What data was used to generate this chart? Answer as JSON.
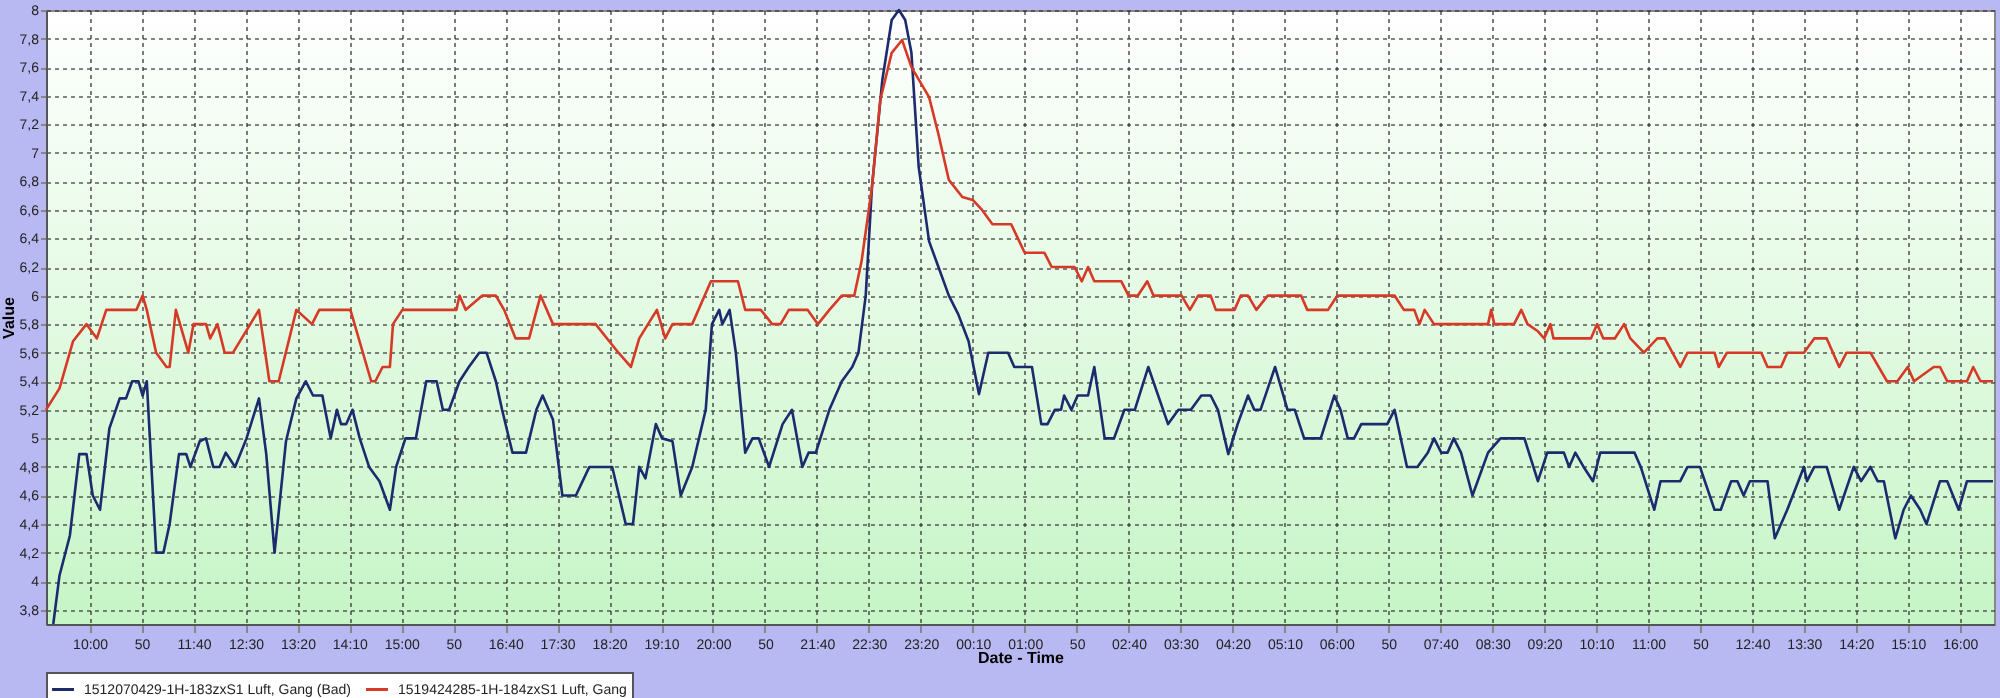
{
  "chart_data": {
    "type": "line",
    "xlabel": "Date - Time",
    "ylabel": "Value",
    "xlim": [
      "--01-01T09:18",
      "--01-02T16:33"
    ],
    "ylim": [
      3.7,
      8
    ],
    "xticks": [
      {
        "value": "--01-01T10:00",
        "label": "10:00"
      },
      {
        "value": "--01-01T10:50",
        "label": "50"
      },
      {
        "value": "--01-01T11:40",
        "label": "11:40"
      },
      {
        "value": "--01-01T12:30",
        "label": "12:30"
      },
      {
        "value": "--01-01T13:20",
        "label": "13:20"
      },
      {
        "value": "--01-01T14:10",
        "label": "14:10"
      },
      {
        "value": "--01-01T15:00",
        "label": "15:00"
      },
      {
        "value": "--01-01T15:50",
        "label": "50"
      },
      {
        "value": "--01-01T16:40",
        "label": "16:40"
      },
      {
        "value": "--01-01T17:30",
        "label": "17:30"
      },
      {
        "value": "--01-01T18:20",
        "label": "18:20"
      },
      {
        "value": "--01-01T19:10",
        "label": "19:10"
      },
      {
        "value": "--01-01T20:00",
        "label": "20:00"
      },
      {
        "value": "--01-01T20:50",
        "label": "50"
      },
      {
        "value": "--01-01T21:40",
        "label": "21:40"
      },
      {
        "value": "--01-01T22:30",
        "label": "22:30"
      },
      {
        "value": "--01-01T23:20",
        "label": "23:20"
      },
      {
        "value": "--01-02T00:10",
        "label": "00:10"
      },
      {
        "value": "--01-02T01:00",
        "label": "01:00"
      },
      {
        "value": "--01-02T01:50",
        "label": "50"
      },
      {
        "value": "--01-02T02:40",
        "label": "02:40"
      },
      {
        "value": "--01-02T03:30",
        "label": "03:30"
      },
      {
        "value": "--01-02T04:20",
        "label": "04:20"
      },
      {
        "value": "--01-02T05:10",
        "label": "05:10"
      },
      {
        "value": "--01-02T06:00",
        "label": "06:00"
      },
      {
        "value": "--01-02T06:50",
        "label": "50"
      },
      {
        "value": "--01-02T07:40",
        "label": "07:40"
      },
      {
        "value": "--01-02T08:30",
        "label": "08:30"
      },
      {
        "value": "--01-02T09:20",
        "label": "09:20"
      },
      {
        "value": "--01-02T10:10",
        "label": "10:10"
      },
      {
        "value": "--01-02T11:00",
        "label": "11:00"
      },
      {
        "value": "--01-02T11:50",
        "label": "50"
      },
      {
        "value": "--01-02T12:40",
        "label": "12:40"
      },
      {
        "value": "--01-02T13:30",
        "label": "13:30"
      },
      {
        "value": "--01-02T14:20",
        "label": "14:20"
      },
      {
        "value": "--01-02T15:10",
        "label": "15:10"
      },
      {
        "value": "--01-02T16:00",
        "label": "16:00"
      }
    ],
    "yticks": [
      {
        "value": 3.8,
        "label": "3,8"
      },
      4,
      {
        "value": 4.2,
        "label": "4,2"
      },
      {
        "value": 4.4,
        "label": "4,4"
      },
      {
        "value": 4.6,
        "label": "4,6"
      },
      {
        "value": 4.8,
        "label": "4,8"
      },
      5,
      {
        "value": 5.2,
        "label": "5,2"
      },
      {
        "value": 5.4,
        "label": "5,4"
      },
      {
        "value": 5.6,
        "label": "5,6"
      },
      {
        "value": 5.8,
        "label": "5,8"
      },
      6,
      {
        "value": 6.2,
        "label": "6,2"
      },
      {
        "value": 6.4,
        "label": "6,4"
      },
      {
        "value": 6.6,
        "label": "6,6"
      },
      {
        "value": 6.8,
        "label": "6,8"
      },
      7,
      {
        "value": 7.2,
        "label": "7,2"
      },
      {
        "value": 7.4,
        "label": "7,4"
      },
      {
        "value": 7.6,
        "label": "7,6"
      },
      {
        "value": 7.8,
        "label": "7,8"
      },
      8
    ],
    "grid": true,
    "legend": "bottom",
    "marker": "none",
    "line_style": "solid",
    "series": [
      {
        "name": "1512070429-1H-183zxS1 Luft, Gang (Bad)",
        "color": "#1c2a6e",
        "x": [
          "--01-01T09:25",
          "--01-01T09:31",
          "--01-01T09:41",
          "--01-01T09:50",
          "--01-01T09:57",
          "--01-01T10:03",
          "--01-01T10:10",
          "--01-01T10:19",
          "--01-01T10:29",
          "--01-01T10:35",
          "--01-01T10:41",
          "--01-01T10:47",
          "--01-01T10:51",
          "--01-01T10:55",
          "--01-01T11:04",
          "--01-01T11:11",
          "--01-01T11:17",
          "--01-01T11:26",
          "--01-01T11:33",
          "--01-01T11:37",
          "--01-01T11:46",
          "--01-01T11:52",
          "--01-01T11:59",
          "--01-01T12:05",
          "--01-01T12:11",
          "--01-01T12:20",
          "--01-01T12:31",
          "--01-01T12:43",
          "--01-01T12:50",
          "--01-01T12:58",
          "--01-01T13:09",
          "--01-01T13:19",
          "--01-01T13:28",
          "--01-01T13:35",
          "--01-01T13:44",
          "--01-01T13:52",
          "--01-01T13:58",
          "--01-01T14:02",
          "--01-01T14:07",
          "--01-01T14:13",
          "--01-01T14:20",
          "--01-01T14:29",
          "--01-01T14:39",
          "--01-01T14:49",
          "--01-01T14:55",
          "--01-01T15:04",
          "--01-01T15:14",
          "--01-01T15:24",
          "--01-01T15:34",
          "--01-01T15:40",
          "--01-01T15:46",
          "--01-01T15:56",
          "--01-01T16:05",
          "--01-01T16:15",
          "--01-01T16:22",
          "--01-01T16:31",
          "--01-01T16:37",
          "--01-01T16:47",
          "--01-01T17:00",
          "--01-01T17:10",
          "--01-01T17:16",
          "--01-01T17:26",
          "--01-01T17:35",
          "--01-01T17:48",
          "--01-01T18:01",
          "--01-01T18:23",
          "--01-01T18:36",
          "--01-01T18:43",
          "--01-01T18:49",
          "--01-01T18:55",
          "--01-01T19:05",
          "--01-01T19:11",
          "--01-01T19:21",
          "--01-01T19:29",
          "--01-01T19:40",
          "--01-01T19:53",
          "--01-01T19:59",
          "--01-01T20:06",
          "--01-01T20:09",
          "--01-01T20:16",
          "--01-01T20:22",
          "--01-01T20:31",
          "--01-01T20:38",
          "--01-01T20:44",
          "--01-01T20:54",
          "--01-01T21:07",
          "--01-01T21:16",
          "--01-01T21:26",
          "--01-01T21:32",
          "--01-01T21:39",
          "--01-01T21:52",
          "--01-01T22:04",
          "--01-01T22:14",
          "--01-01T22:20",
          "--01-01T22:27",
          "--01-01T22:33",
          "--01-01T22:43",
          "--01-01T22:52",
          "--01-01T22:59",
          "--01-01T23:05",
          "--01-01T23:11",
          "--01-01T23:18",
          "--01-01T23:28",
          "--01-01T23:37",
          "--01-01T23:47",
          "--01-01T23:56",
          "--01-02T00:06",
          "--01-02T00:16",
          "--01-02T00:25",
          "--01-02T00:38",
          "--01-02T00:44",
          "--01-02T00:50",
          "--01-02T01:07",
          "--01-02T01:16",
          "--01-02T01:22",
          "--01-02T01:29",
          "--01-02T01:35",
          "--01-02T01:38",
          "--01-02T01:45",
          "--01-02T01:51",
          "--01-02T02:01",
          "--01-02T02:07",
          "--01-02T02:17",
          "--01-02T02:26",
          "--01-02T02:36",
          "--01-02T02:46",
          "--01-02T02:59",
          "--01-02T03:18",
          "--01-02T03:28",
          "--01-02T03:40",
          "--01-02T03:50",
          "--01-02T03:59",
          "--01-02T04:06",
          "--01-02T04:16",
          "--01-02T04:25",
          "--01-02T04:35",
          "--01-02T04:41",
          "--01-02T04:47",
          "--01-02T05:01",
          "--01-02T05:13",
          "--01-02T05:20",
          "--01-02T05:29",
          "--01-02T05:45",
          "--01-02T05:58",
          "--01-02T06:04",
          "--01-02T06:11",
          "--01-02T06:17",
          "--01-02T06:24",
          "--01-02T06:49",
          "--01-02T06:56",
          "--01-02T07:08",
          "--01-02T07:18",
          "--01-02T07:28",
          "--01-02T07:34",
          "--01-02T07:41",
          "--01-02T07:47",
          "--01-02T07:53",
          "--01-02T08:00",
          "--01-02T08:11",
          "--01-02T08:26",
          "--01-02T08:38",
          "--01-02T09:01",
          "--01-02T09:14",
          "--01-02T09:23",
          "--01-02T09:39",
          "--01-02T09:44",
          "--01-02T09:50",
          "--01-02T09:58",
          "--01-02T10:07",
          "--01-02T10:14",
          "--01-02T10:47",
          "--01-02T10:53",
          "--01-02T11:06",
          "--01-02T11:12",
          "--01-02T11:31",
          "--01-02T11:38",
          "--01-02T11:50",
          "--01-02T12:04",
          "--01-02T12:10",
          "--01-02T12:20",
          "--01-02T12:26",
          "--01-02T12:32",
          "--01-02T12:38",
          "--01-02T12:55",
          "--01-02T13:02",
          "--01-02T13:14",
          "--01-02T13:30",
          "--01-02T13:33",
          "--01-02T13:40",
          "--01-02T13:52",
          "--01-02T14:04",
          "--01-02T14:18",
          "--01-02T14:25",
          "--01-02T14:34",
          "--01-02T14:41",
          "--01-02T14:47",
          "--01-02T14:58",
          "--01-02T15:06",
          "--01-02T15:13",
          "--01-02T15:22",
          "--01-02T15:28",
          "--01-02T15:41",
          "--01-02T15:48",
          "--01-02T15:59",
          "--01-02T16:07",
          "--01-02T16:32"
        ],
        "values": [
          3.7,
          4.04,
          4.32,
          4.89,
          4.89,
          4.6,
          4.5,
          5.07,
          5.28,
          5.28,
          5.4,
          5.4,
          5.3,
          5.4,
          4.2,
          4.2,
          4.4,
          4.89,
          4.89,
          4.8,
          4.98,
          5.0,
          4.8,
          4.8,
          4.9,
          4.8,
          5.0,
          5.28,
          4.89,
          4.2,
          4.98,
          5.28,
          5.4,
          5.3,
          5.3,
          5.0,
          5.2,
          5.1,
          5.1,
          5.2,
          5.0,
          4.8,
          4.7,
          4.5,
          4.8,
          5.0,
          5.0,
          5.4,
          5.4,
          5.2,
          5.2,
          5.4,
          5.5,
          5.6,
          5.6,
          5.4,
          5.2,
          4.9,
          4.9,
          5.2,
          5.3,
          5.13,
          4.6,
          4.6,
          4.8,
          4.8,
          4.4,
          4.4,
          4.8,
          4.72,
          5.1,
          5.0,
          4.98,
          4.6,
          4.8,
          5.2,
          5.8,
          5.9,
          5.8,
          5.9,
          5.6,
          4.9,
          5.0,
          5.0,
          4.8,
          5.1,
          5.2,
          4.8,
          4.9,
          4.9,
          5.2,
          5.4,
          5.5,
          5.6,
          6.0,
          6.76,
          7.51,
          7.93,
          8.0,
          7.93,
          7.7,
          6.9,
          6.38,
          6.2,
          6.0,
          5.87,
          5.68,
          5.31,
          5.6,
          5.6,
          5.6,
          5.5,
          5.5,
          5.1,
          5.1,
          5.2,
          5.2,
          5.3,
          5.2,
          5.3,
          5.3,
          5.5,
          5.0,
          5.0,
          5.2,
          5.2,
          5.5,
          5.1,
          5.2,
          5.2,
          5.3,
          5.3,
          5.2,
          4.89,
          5.1,
          5.3,
          5.2,
          5.2,
          5.5,
          5.2,
          5.2,
          5.0,
          5.0,
          5.3,
          5.2,
          5.0,
          5.0,
          5.1,
          5.1,
          5.2,
          4.8,
          4.8,
          4.9,
          5.0,
          4.9,
          4.9,
          5.0,
          4.9,
          4.6,
          4.9,
          5.0,
          5.0,
          4.7,
          4.9,
          4.9,
          4.8,
          4.9,
          4.8,
          4.7,
          4.9,
          4.9,
          4.8,
          4.5,
          4.7,
          4.7,
          4.8,
          4.8,
          4.5,
          4.5,
          4.7,
          4.7,
          4.6,
          4.7,
          4.7,
          4.3,
          4.5,
          4.8,
          4.7,
          4.8,
          4.8,
          4.5,
          4.8,
          4.7,
          4.8,
          4.7,
          4.7,
          4.3,
          4.5,
          4.6,
          4.5,
          4.4,
          4.7,
          4.7,
          4.5,
          4.7,
          4.7
        ]
      },
      {
        "name": "1519424285-1H-184zxS1 Luft, Gang",
        "color": "#d63a26",
        "x": [
          "--01-01T09:18",
          "--01-01T09:31",
          "--01-01T09:44",
          "--01-01T09:57",
          "--01-01T10:07",
          "--01-01T10:16",
          "--01-01T10:45",
          "--01-01T10:51",
          "--01-01T10:55",
          "--01-01T11:04",
          "--01-01T11:14",
          "--01-01T11:17",
          "--01-01T11:23",
          "--01-01T11:35",
          "--01-01T11:40",
          "--01-01T11:52",
          "--01-01T11:56",
          "--01-01T12:03",
          "--01-01T12:10",
          "--01-01T12:18",
          "--01-01T12:43",
          "--01-01T12:53",
          "--01-01T13:02",
          "--01-01T13:19",
          "--01-01T13:34",
          "--01-01T13:41",
          "--01-01T14:11",
          "--01-01T14:31",
          "--01-01T14:35",
          "--01-01T14:42",
          "--01-01T14:49",
          "--01-01T14:52",
          "--01-01T15:01",
          "--01-01T15:53",
          "--01-01T15:56",
          "--01-01T16:02",
          "--01-01T16:18",
          "--01-01T16:31",
          "--01-01T16:39",
          "--01-01T16:50",
          "--01-01T17:03",
          "--01-01T17:14",
          "--01-01T17:26",
          "--01-01T18:07",
          "--01-01T18:29",
          "--01-01T18:41",
          "--01-01T18:49",
          "--01-01T19:06",
          "--01-01T19:14",
          "--01-01T19:21",
          "--01-01T19:40",
          "--01-01T19:58",
          "--01-01T20:24",
          "--01-01T20:31",
          "--01-01T20:46",
          "--01-01T20:57",
          "--01-01T21:05",
          "--01-01T21:13",
          "--01-01T21:31",
          "--01-01T21:41",
          "--01-01T21:52",
          "--01-01T22:04",
          "--01-01T22:16",
          "--01-01T22:23",
          "--01-01T22:33",
          "--01-01T22:41",
          "--01-01T22:52",
          "--01-01T23:02",
          "--01-01T23:11",
          "--01-01T23:28",
          "--01-01T23:37",
          "--01-01T23:47",
          "--01-02T00:00",
          "--01-02T00:10",
          "--01-02T00:19",
          "--01-02T00:29",
          "--01-02T00:38",
          "--01-02T00:47",
          "--01-02T01:00",
          "--01-02T01:19",
          "--01-02T01:26",
          "--01-02T01:48",
          "--01-02T01:55",
          "--01-02T02:01",
          "--01-02T02:07",
          "--01-02T02:33",
          "--01-02T02:40",
          "--01-02T02:49",
          "--01-02T02:58",
          "--01-02T03:04",
          "--01-02T03:31",
          "--01-02T03:39",
          "--01-02T03:47",
          "--01-02T03:59",
          "--01-02T04:04",
          "--01-02T04:22",
          "--01-02T04:28",
          "--01-02T04:35",
          "--01-02T04:43",
          "--01-02T04:54",
          "--01-02T05:26",
          "--01-02T05:32",
          "--01-02T05:52",
          "--01-02T06:01",
          "--01-02T06:56",
          "--01-02T07:05",
          "--01-02T07:15",
          "--01-02T07:20",
          "--01-02T07:25",
          "--01-02T07:34",
          "--01-02T08:26",
          "--01-02T08:29",
          "--01-02T08:32",
          "--01-02T08:51",
          "--01-02T08:58",
          "--01-02T09:04",
          "--01-02T09:14",
          "--01-02T09:20",
          "--01-02T09:26",
          "--01-02T09:29",
          "--01-02T10:05",
          "--01-02T10:11",
          "--01-02T10:17",
          "--01-02T10:28",
          "--01-02T10:37",
          "--01-02T10:43",
          "--01-02T10:56",
          "--01-02T11:09",
          "--01-02T11:16",
          "--01-02T11:31",
          "--01-02T11:38",
          "--01-02T12:04",
          "--01-02T12:08",
          "--01-02T12:16",
          "--01-02T12:49",
          "--01-02T12:55",
          "--01-02T13:08",
          "--01-02T13:14",
          "--01-02T13:30",
          "--01-02T13:40",
          "--01-02T13:52",
          "--01-02T14:04",
          "--01-02T14:11",
          "--01-02T14:34",
          "--01-02T14:50",
          "--01-02T15:00",
          "--01-02T15:10",
          "--01-02T15:16",
          "--01-02T15:35",
          "--01-02T15:41",
          "--01-02T15:48",
          "--01-02T16:07",
          "--01-02T16:13",
          "--01-02T16:20",
          "--01-02T16:32"
        ],
        "values": [
          5.2,
          5.35,
          5.68,
          5.8,
          5.7,
          5.9,
          5.9,
          6.0,
          5.9,
          5.6,
          5.5,
          5.5,
          5.9,
          5.6,
          5.8,
          5.8,
          5.7,
          5.8,
          5.6,
          5.6,
          5.9,
          5.4,
          5.4,
          5.9,
          5.8,
          5.9,
          5.9,
          5.4,
          5.4,
          5.5,
          5.5,
          5.8,
          5.9,
          5.9,
          6.0,
          5.9,
          6.0,
          6.0,
          5.9,
          5.7,
          5.7,
          6.0,
          5.8,
          5.8,
          5.6,
          5.5,
          5.7,
          5.9,
          5.7,
          5.8,
          5.8,
          6.1,
          6.1,
          5.9,
          5.9,
          5.8,
          5.8,
          5.9,
          5.9,
          5.8,
          5.9,
          6.0,
          6.0,
          6.24,
          6.76,
          7.37,
          7.7,
          7.79,
          7.6,
          7.39,
          7.13,
          6.81,
          6.69,
          6.67,
          6.6,
          6.5,
          6.5,
          6.5,
          6.3,
          6.3,
          6.2,
          6.2,
          6.1,
          6.2,
          6.1,
          6.1,
          6.0,
          6.0,
          6.1,
          6.0,
          6.0,
          5.9,
          6.0,
          6.0,
          5.9,
          5.9,
          6.0,
          6.0,
          5.9,
          6.0,
          6.0,
          5.9,
          5.9,
          6.0,
          6.0,
          5.9,
          5.9,
          5.8,
          5.9,
          5.8,
          5.8,
          5.9,
          5.8,
          5.8,
          5.9,
          5.8,
          5.75,
          5.7,
          5.8,
          5.7,
          5.7,
          5.8,
          5.7,
          5.7,
          5.8,
          5.7,
          5.6,
          5.7,
          5.7,
          5.5,
          5.6,
          5.6,
          5.5,
          5.6,
          5.6,
          5.5,
          5.5,
          5.6,
          5.6,
          5.7,
          5.7,
          5.5,
          5.6,
          5.6,
          5.4,
          5.4,
          5.5,
          5.4,
          5.5,
          5.5,
          5.4,
          5.4,
          5.5,
          5.4,
          5.4
        ]
      }
    ]
  }
}
